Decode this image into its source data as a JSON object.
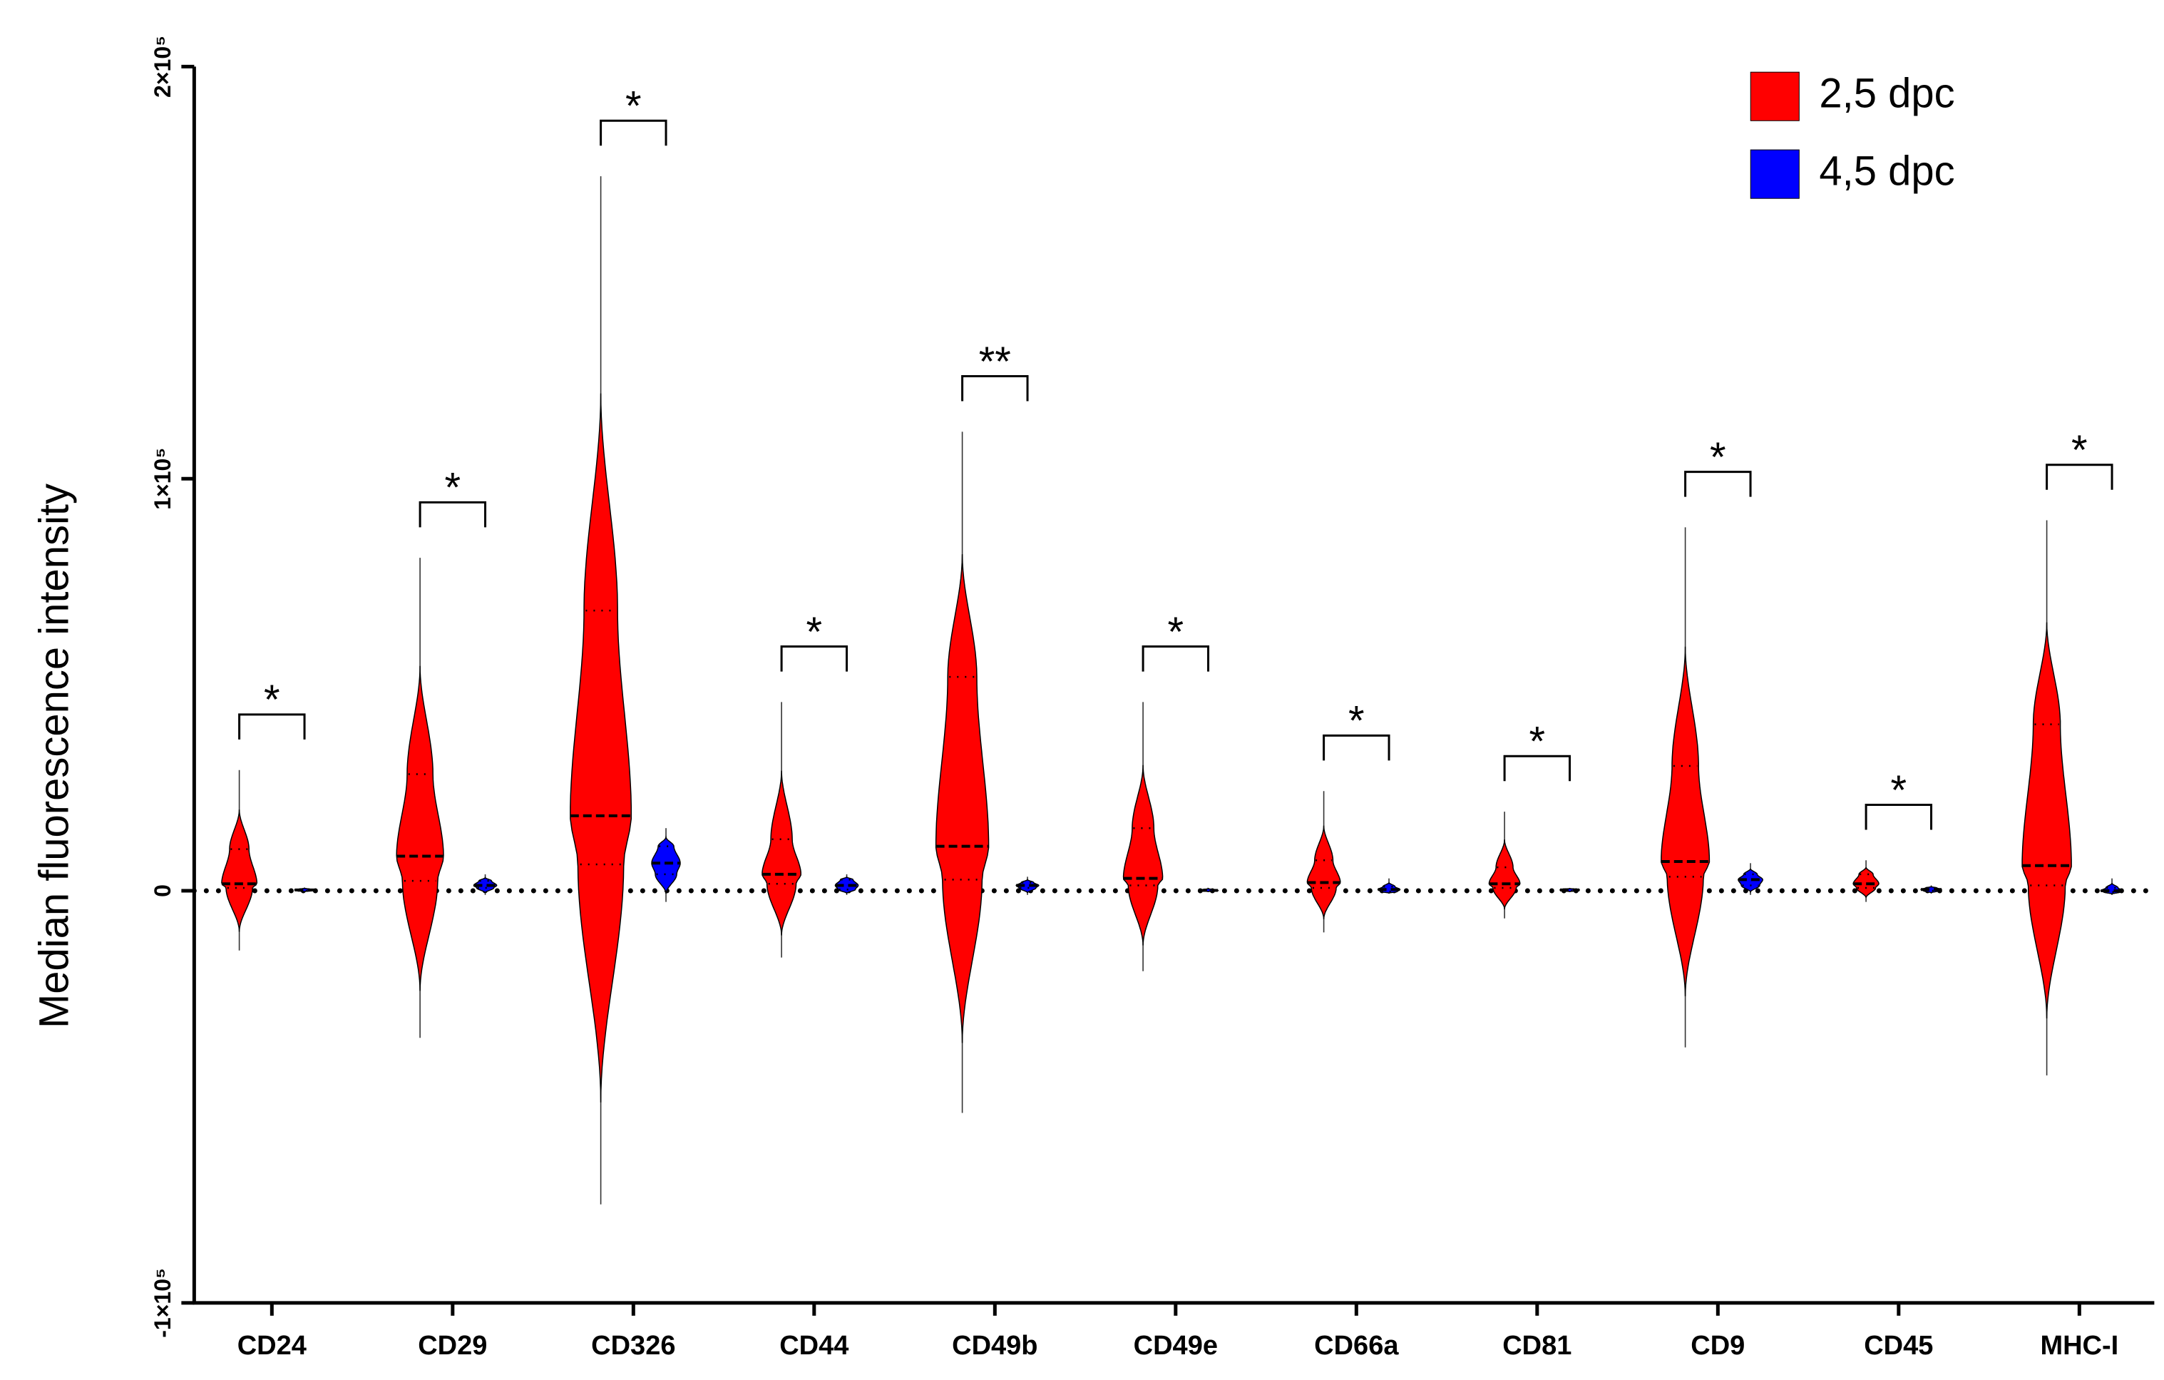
{
  "chart_data": {
    "type": "violin",
    "y_label": "Median fluorescence intensity",
    "categories": [
      "CD24",
      "CD29",
      "CD326",
      "CD44",
      "CD49b",
      "CD49e",
      "CD66a",
      "CD81",
      "CD9",
      "CD45",
      "MHC-I"
    ],
    "ylim": [
      -100000,
      200000
    ],
    "yticks": [
      {
        "value": -100000,
        "label": "-1×10⁵"
      },
      0,
      {
        "value": 100000,
        "label": "1×10⁵"
      },
      {
        "value": 200000,
        "label": "2×10⁵"
      }
    ],
    "zero_line": true,
    "legend": "top-right",
    "series": [
      {
        "name": "2,5 dpc",
        "color": "#ff0000",
        "max": [
          29300,
          80800,
          173400,
          45800,
          111400,
          45800,
          24200,
          19200,
          88200,
          7400,
          89900
        ],
        "q3": [
          10100,
          28300,
          68000,
          12500,
          51900,
          15200,
          7400,
          5700,
          30300,
          4000,
          40400
        ],
        "median": [
          1700,
          8400,
          18200,
          4000,
          10800,
          3000,
          2000,
          1700,
          7100,
          1700,
          6100
        ],
        "q1": [
          700,
          2400,
          6400,
          1700,
          2700,
          1300,
          700,
          700,
          3400,
          700,
          1300
        ],
        "min": [
          -14500,
          -35700,
          -76100,
          -16200,
          -53900,
          -19500,
          -10100,
          -6700,
          -38000,
          -2700,
          -44800
        ]
      },
      {
        "name": "4,5 dpc",
        "color": "#0000ff",
        "max": [
          800,
          4000,
          15200,
          4000,
          3400,
          700,
          3000,
          700,
          6700,
          1300,
          3000
        ],
        "q3": [
          400,
          2400,
          10800,
          2700,
          2000,
          300,
          1000,
          400,
          4000,
          700,
          700
        ],
        "median": [
          200,
          1300,
          6700,
          1300,
          1300,
          100,
          300,
          200,
          2700,
          300,
          0
        ],
        "q1": [
          0,
          700,
          4000,
          300,
          700,
          0,
          -200,
          0,
          1300,
          0,
          -300
        ],
        "min": [
          -300,
          -1000,
          -2700,
          -1000,
          -1000,
          -300,
          -700,
          -300,
          -1000,
          -700,
          -1000
        ]
      }
    ],
    "significance": [
      "*",
      "*",
      "*",
      "*",
      "**",
      "*",
      "*",
      "*",
      "*",
      "*",
      "*"
    ]
  }
}
